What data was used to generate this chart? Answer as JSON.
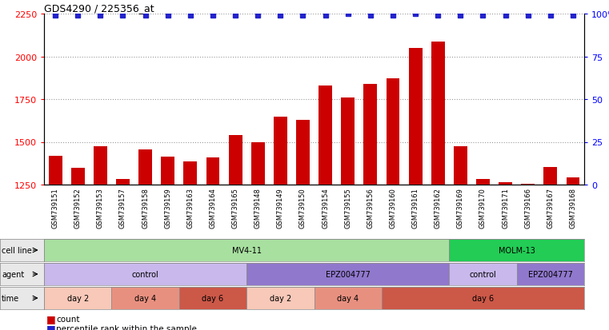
{
  "title": "GDS4290 / 225356_at",
  "samples": [
    "GSM739151",
    "GSM739152",
    "GSM739153",
    "GSM739157",
    "GSM739158",
    "GSM739159",
    "GSM739163",
    "GSM739164",
    "GSM739165",
    "GSM739148",
    "GSM739149",
    "GSM739150",
    "GSM739154",
    "GSM739155",
    "GSM739156",
    "GSM739160",
    "GSM739161",
    "GSM739162",
    "GSM739169",
    "GSM739170",
    "GSM739171",
    "GSM739166",
    "GSM739167",
    "GSM739168"
  ],
  "counts": [
    1420,
    1350,
    1475,
    1285,
    1455,
    1415,
    1385,
    1410,
    1540,
    1500,
    1645,
    1630,
    1830,
    1760,
    1840,
    1870,
    2050,
    2085,
    1475,
    1285,
    1265,
    1255,
    1355,
    1290
  ],
  "percentile_ranks": [
    99,
    99,
    99,
    99,
    99,
    99,
    99,
    99,
    99,
    99,
    99,
    99,
    99,
    100,
    99,
    99,
    100,
    99,
    99,
    99,
    99,
    99,
    99,
    99
  ],
  "bar_color": "#cc0000",
  "dot_color": "#2222cc",
  "ylim_left": [
    1250,
    2250
  ],
  "ylim_right": [
    0,
    100
  ],
  "yticks_left": [
    1250,
    1500,
    1750,
    2000,
    2250
  ],
  "yticks_right": [
    0,
    25,
    50,
    75,
    100
  ],
  "cell_line_groups": [
    {
      "label": "MV4-11",
      "start": 0,
      "end": 17,
      "color": "#a8e0a0"
    },
    {
      "label": "MOLM-13",
      "start": 18,
      "end": 23,
      "color": "#22cc55"
    }
  ],
  "agent_groups": [
    {
      "label": "control",
      "start": 0,
      "end": 8,
      "color": "#c8b8ec"
    },
    {
      "label": "EPZ004777",
      "start": 9,
      "end": 17,
      "color": "#9078cc"
    },
    {
      "label": "control",
      "start": 18,
      "end": 20,
      "color": "#c8b8ec"
    },
    {
      "label": "EPZ004777",
      "start": 21,
      "end": 23,
      "color": "#9078cc"
    }
  ],
  "time_groups": [
    {
      "label": "day 2",
      "start": 0,
      "end": 2,
      "color": "#f8c8b8"
    },
    {
      "label": "day 4",
      "start": 3,
      "end": 5,
      "color": "#e89080"
    },
    {
      "label": "day 6",
      "start": 6,
      "end": 8,
      "color": "#cc5848"
    },
    {
      "label": "day 2",
      "start": 9,
      "end": 11,
      "color": "#f8c8b8"
    },
    {
      "label": "day 4",
      "start": 12,
      "end": 14,
      "color": "#e89080"
    },
    {
      "label": "day 6",
      "start": 15,
      "end": 23,
      "color": "#cc5848"
    }
  ],
  "legend_items": [
    {
      "label": "count",
      "color": "#cc0000"
    },
    {
      "label": "percentile rank within the sample",
      "color": "#2222cc"
    }
  ],
  "background_color": "#ffffff"
}
